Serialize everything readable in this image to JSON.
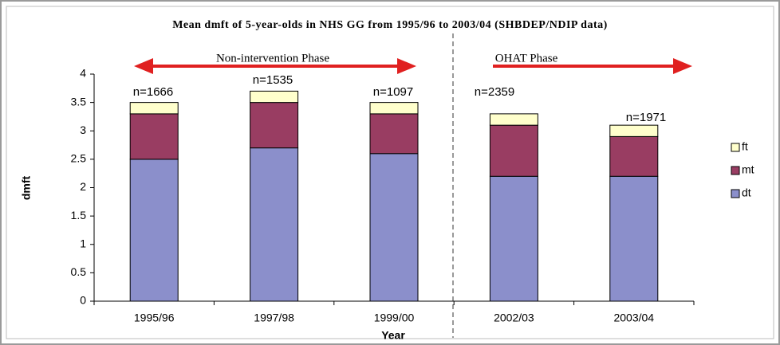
{
  "chart_data": {
    "type": "bar",
    "stacked": true,
    "title": "Mean dmft of 5-year-olds in NHS GG from 1995/96 to 2003/04 (SHBDEP/NDIP data)",
    "x_label": "Year",
    "y_label": "dmft",
    "categories": [
      "1995/96",
      "1997/98",
      "1999/00",
      "2002/03",
      "2003/04"
    ],
    "series": [
      {
        "name": "dt",
        "color": "#8b8fcb",
        "values": [
          2.5,
          2.7,
          2.6,
          2.2,
          2.2
        ]
      },
      {
        "name": "mt",
        "color": "#993d62",
        "values": [
          0.8,
          0.8,
          0.7,
          0.9,
          0.7
        ]
      },
      {
        "name": "ft",
        "color": "#ffffcc",
        "values": [
          0.2,
          0.2,
          0.2,
          0.2,
          0.2
        ]
      }
    ],
    "ylim": [
      0,
      4
    ],
    "yticks": [
      0,
      0.5,
      1,
      1.5,
      2,
      2.5,
      3,
      3.5,
      4
    ],
    "annotations": [
      "n=1666",
      "n=1535",
      "n=1097",
      "n=2359",
      "n=1971"
    ],
    "phases": [
      "Non-intervention Phase",
      "OHAT Phase"
    ],
    "legend_position": "right"
  }
}
